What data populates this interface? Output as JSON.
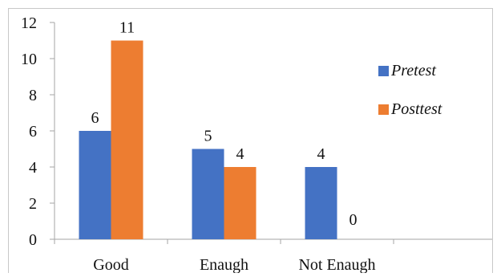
{
  "chart_data": {
    "type": "bar",
    "categories": [
      "Good",
      "Enaugh",
      "Not Enaugh"
    ],
    "series": [
      {
        "name": "Pretest",
        "values": [
          6,
          5,
          4
        ],
        "color": "#4472C4"
      },
      {
        "name": "Posttest",
        "values": [
          11,
          4,
          0
        ],
        "color": "#ED7D31"
      }
    ],
    "ylim": [
      0,
      12
    ],
    "yticks": [
      "0",
      "2",
      "4",
      "6",
      "8",
      "10",
      "12"
    ],
    "grid": false,
    "legend_position": "right"
  }
}
